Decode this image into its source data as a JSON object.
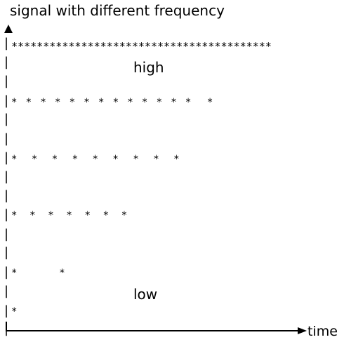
{
  "title": "signal with different frequency",
  "labels": {
    "high": "high",
    "low": "low",
    "x_axis": "time"
  },
  "y_axis_tick_char": "|",
  "signal_rows": [
    "*****************************************",
    "* * * * * * * * * * * * *  *",
    "*  *  *  *  *  *  *  *  *",
    "*   *   *   *   *   *   *",
    "*        *",
    "*"
  ]
}
